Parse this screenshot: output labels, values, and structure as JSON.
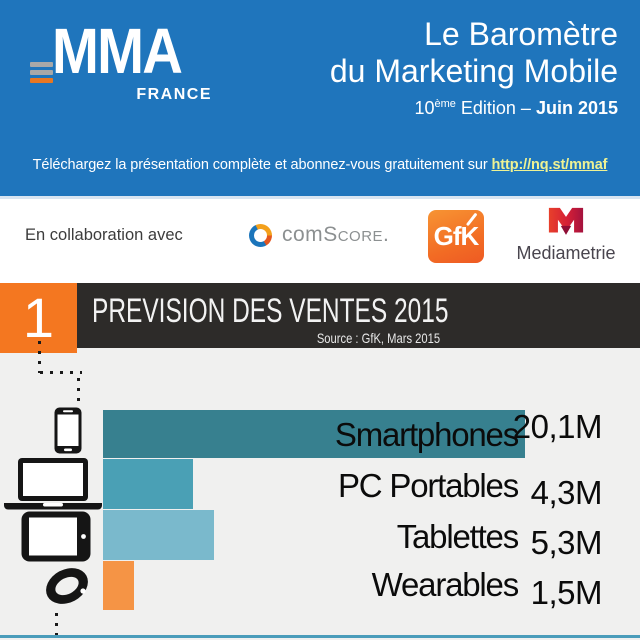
{
  "header": {
    "brand": "MMA",
    "brand_sub": "FRANCE",
    "title_line1": "Le Baromètre",
    "title_line2": "du Marketing Mobile",
    "edition_number": "10",
    "edition_sup": "ème",
    "edition_rest": " Edition – ",
    "edition_date": "Juin 2015",
    "download_prefix": "Téléchargez la présentation complète et abonnez-vous gratuitement sur ",
    "download_link": "http://nq.st/mmaf"
  },
  "partners": {
    "label": "En collaboration avec",
    "comscore_com": "com",
    "comscore_score": "Score",
    "comscore_dot": ".",
    "gfk": "GfK",
    "mediametrie": "Mediametrie"
  },
  "section": {
    "number": "1",
    "title": "PREVISION DES VENTES 2015",
    "source": "Source : GfK, Mars 2015"
  },
  "chart_data": {
    "type": "bar",
    "orientation": "horizontal",
    "title": "PREVISION DES VENTES 2015",
    "source": "Source : GfK, Mars 2015",
    "unit": "M",
    "categories": [
      "Smartphones",
      "PC Portables",
      "Tablettes",
      "Wearables"
    ],
    "values": [
      20.1,
      4.3,
      5.3,
      1.5
    ],
    "value_labels": [
      "20,1M",
      "4,3M",
      "5,3M",
      "1,5M"
    ],
    "bar_colors": [
      "#37808F",
      "#4AA0B5",
      "#7AB9CC",
      "#F59445"
    ],
    "icons": [
      "smartphone",
      "laptop",
      "tablet",
      "smartwatch"
    ],
    "xlim": [
      0,
      20.1
    ],
    "grid": false,
    "legend": false
  },
  "colors": {
    "header_bg": "#1F75BC",
    "link_text": "#EEF293",
    "banner_bg": "#2D2B29",
    "accent_orange": "#F47720",
    "chart_bg": "#F0F0EF",
    "bottom_divider": "#4A9CBA"
  }
}
